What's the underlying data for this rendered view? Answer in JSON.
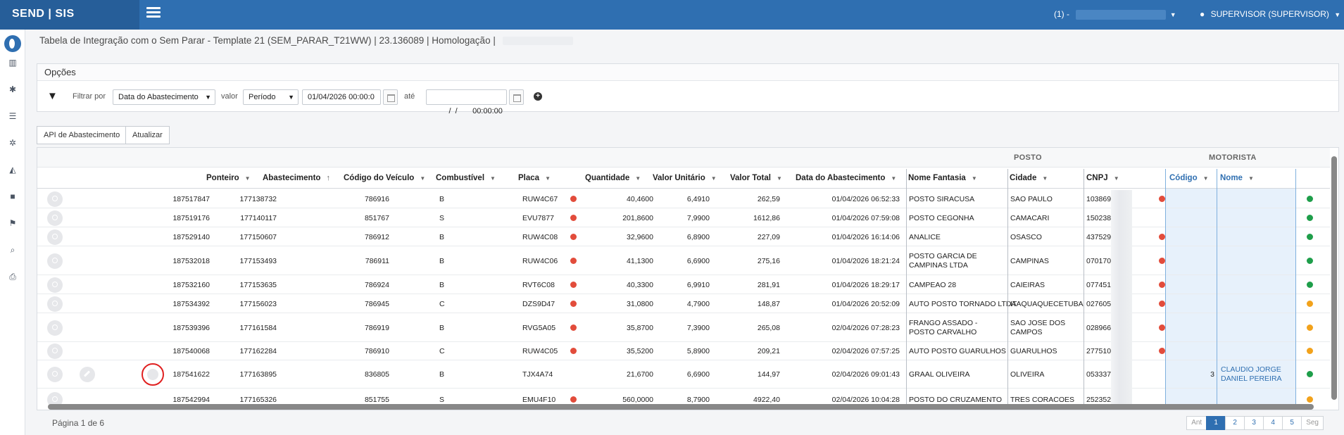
{
  "app": {
    "brand": "SEND | SIS"
  },
  "header": {
    "company_label": "(1) -",
    "user_label": "SUPERVISOR (SUPERVISOR)"
  },
  "page": {
    "title": "Tabela de Integração com o Sem Parar - Template 21 (SEM_PARAR_T21WW) | 23.136089 | Homologação |"
  },
  "options": {
    "heading": "Opções",
    "filter_label": "Filtrar por",
    "filter_field": "Data do Abastecimento",
    "value_label": "valor",
    "value_type": "Período",
    "date_from": "01/04/2026 00:00:0",
    "until_label": "até",
    "date_to": "  /  /       00:00:00"
  },
  "actions": {
    "api_button": "API de Abastecimento",
    "refresh_button": "Atualizar"
  },
  "grid": {
    "group_posto": "POSTO",
    "group_motorista": "MOTORISTA",
    "columns": {
      "ponteiro": "Ponteiro",
      "abastecimento": "Abastecimento",
      "codigo_veiculo": "Código do Veículo",
      "combustivel": "Combustível",
      "placa": "Placa",
      "quantidade": "Quantidade",
      "valor_unitario": "Valor Unitário",
      "valor_total": "Valor Total",
      "data": "Data do Abastecimento",
      "nome_fantasia": "Nome Fantasia",
      "cidade": "Cidade",
      "cnpj": "CNPJ",
      "codigo": "Código",
      "nome": "Nome"
    },
    "rows": [
      {
        "ponteiro": "187517847",
        "abastecimento": "177138732",
        "veiculo": "786916",
        "combustivel": "B",
        "placa": "RUW4C67",
        "placa_status": "red",
        "quantidade": "40,4600",
        "unitario": "6,4910",
        "total": "262,59",
        "data": "01/04/2026 06:52:33",
        "nome_fantasia": "POSTO SIRACUSA",
        "cidade": "SAO PAULO",
        "cnpj": "103869",
        "cnpj_status": "red",
        "codigo": "",
        "nome": "",
        "status": "green"
      },
      {
        "ponteiro": "187519176",
        "abastecimento": "177140117",
        "veiculo": "851767",
        "combustivel": "S",
        "placa": "EVU7877",
        "placa_status": "red",
        "quantidade": "201,8600",
        "unitario": "7,9900",
        "total": "1612,86",
        "data": "01/04/2026 07:59:08",
        "nome_fantasia": "POSTO CEGONHA",
        "cidade": "CAMACARI",
        "cnpj": "150238",
        "cnpj_status": "",
        "codigo": "",
        "nome": "",
        "status": "green"
      },
      {
        "ponteiro": "187529140",
        "abastecimento": "177150607",
        "veiculo": "786912",
        "combustivel": "B",
        "placa": "RUW4C08",
        "placa_status": "red",
        "quantidade": "32,9600",
        "unitario": "6,8900",
        "total": "227,09",
        "data": "01/04/2026 16:14:06",
        "nome_fantasia": "ANALICE",
        "cidade": "OSASCO",
        "cnpj": "437529",
        "cnpj_status": "red",
        "codigo": "",
        "nome": "",
        "status": "green"
      },
      {
        "ponteiro": "187532018",
        "abastecimento": "177153493",
        "veiculo": "786911",
        "combustivel": "B",
        "placa": "RUW4C06",
        "placa_status": "red",
        "quantidade": "41,1300",
        "unitario": "6,6900",
        "total": "275,16",
        "data": "01/04/2026 18:21:24",
        "nome_fantasia": "POSTO GARCIA DE CAMPINAS LTDA",
        "cidade": "CAMPINAS",
        "cnpj": "070170",
        "cnpj_status": "red",
        "codigo": "",
        "nome": "",
        "status": "green"
      },
      {
        "ponteiro": "187532160",
        "abastecimento": "177153635",
        "veiculo": "786924",
        "combustivel": "B",
        "placa": "RVT6C08",
        "placa_status": "red",
        "quantidade": "40,3300",
        "unitario": "6,9910",
        "total": "281,91",
        "data": "01/04/2026 18:29:17",
        "nome_fantasia": "CAMPEAO 28",
        "cidade": "CAIEIRAS",
        "cnpj": "077451",
        "cnpj_status": "red",
        "codigo": "",
        "nome": "",
        "status": "green"
      },
      {
        "ponteiro": "187534392",
        "abastecimento": "177156023",
        "veiculo": "786945",
        "combustivel": "C",
        "placa": "DZS9D47",
        "placa_status": "red",
        "quantidade": "31,0800",
        "unitario": "4,7900",
        "total": "148,87",
        "data": "01/04/2026 20:52:09",
        "nome_fantasia": "AUTO POSTO TORNADO LTDA",
        "cidade": "ITAQUAQUECETUBA",
        "cnpj": "027605",
        "cnpj_status": "red",
        "codigo": "",
        "nome": "",
        "status": "orange"
      },
      {
        "ponteiro": "187539396",
        "abastecimento": "177161584",
        "veiculo": "786919",
        "combustivel": "B",
        "placa": "RVG5A05",
        "placa_status": "red",
        "quantidade": "35,8700",
        "unitario": "7,3900",
        "total": "265,08",
        "data": "02/04/2026 07:28:23",
        "nome_fantasia": "FRANGO ASSADO - POSTO CARVALHO",
        "cidade": "SAO JOSE DOS CAMPOS",
        "cnpj": "028966",
        "cnpj_status": "red",
        "codigo": "",
        "nome": "",
        "status": "orange"
      },
      {
        "ponteiro": "187540068",
        "abastecimento": "177162284",
        "veiculo": "786910",
        "combustivel": "C",
        "placa": "RUW4C05",
        "placa_status": "red",
        "quantidade": "35,5200",
        "unitario": "5,8900",
        "total": "209,21",
        "data": "02/04/2026 07:57:25",
        "nome_fantasia": "AUTO POSTO GUARULHOS",
        "cidade": "GUARULHOS",
        "cnpj": "277510",
        "cnpj_status": "red",
        "codigo": "",
        "nome": "",
        "status": "orange"
      },
      {
        "ponteiro": "187541622",
        "abastecimento": "177163895",
        "veiculo": "836805",
        "combustivel": "B",
        "placa": "TJX4A74",
        "placa_status": "",
        "quantidade": "21,6700",
        "unitario": "6,6900",
        "total": "144,97",
        "data": "02/04/2026 09:01:43",
        "nome_fantasia": "GRAAL OLIVEIRA",
        "cidade": "OLIVEIRA",
        "cnpj": "053337",
        "cnpj_status": "",
        "codigo": "3",
        "nome": "CLAUDIO JORGE DANIEL PEREIRA",
        "status": "green"
      },
      {
        "ponteiro": "187542994",
        "abastecimento": "177165326",
        "veiculo": "851755",
        "combustivel": "S",
        "placa": "EMU4F10",
        "placa_status": "red",
        "quantidade": "560,0000",
        "unitario": "8,7900",
        "total": "4922,40",
        "data": "02/04/2026 10:04:28",
        "nome_fantasia": "POSTO DO CRUZAMENTO",
        "cidade": "TRES CORACOES",
        "cnpj": "252352",
        "cnpj_status": "",
        "codigo": "",
        "nome": "",
        "status": "orange"
      }
    ]
  },
  "footer": {
    "page_info": "Página 1 de 6",
    "pager": [
      "Ant",
      "1",
      "2",
      "3",
      "4",
      "5",
      "Seg"
    ]
  },
  "icons": {
    "menu": "hamburger-icon",
    "user": "user-icon",
    "filter": "filter-icon",
    "calendar": "calendar-icon",
    "add": "plus-circle-icon",
    "search": "search-icon",
    "edit": "pencil-icon"
  },
  "colors": {
    "brand": "#2f6fb1",
    "red": "#e24c3b",
    "green": "#1e9e4a",
    "orange": "#f2a21b"
  }
}
